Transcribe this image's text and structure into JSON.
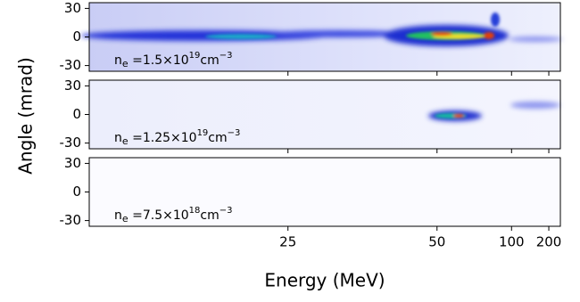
{
  "xlabel": "Energy (MeV)",
  "ylabel": "Angle (mrad)",
  "chart_data": [
    {
      "type": "heatmap",
      "xscale": "inverse",
      "xlim": [
        15,
        290
      ],
      "xticks": [
        25,
        50,
        100,
        200
      ],
      "ylim": [
        -36,
        36
      ],
      "yticks": [
        30,
        0,
        -30
      ],
      "annotation": {
        "base": "n",
        "sub": "e",
        "mantissa": " =1.5×10",
        "exp": "19",
        "unit": "cm",
        "unit_exp": "−3"
      }
    },
    {
      "type": "heatmap",
      "xscale": "inverse",
      "xlim": [
        15,
        290
      ],
      "xticks": [
        25,
        50,
        100,
        200
      ],
      "ylim": [
        -36,
        36
      ],
      "yticks": [
        30,
        0,
        -30
      ],
      "annotation": {
        "base": "n",
        "sub": "e",
        "mantissa": " =1.25×10",
        "exp": "19",
        "unit": "cm",
        "unit_exp": "−3"
      }
    },
    {
      "type": "heatmap",
      "xscale": "inverse",
      "xlim": [
        15,
        290
      ],
      "xticks": [
        25,
        50,
        100,
        200
      ],
      "ylim": [
        -36,
        36
      ],
      "yticks": [
        30,
        0,
        -30
      ],
      "annotation": {
        "base": "n",
        "sub": "e",
        "mantissa": " =7.5×10",
        "exp": "18",
        "unit": "cm",
        "unit_exp": "−3"
      }
    }
  ]
}
